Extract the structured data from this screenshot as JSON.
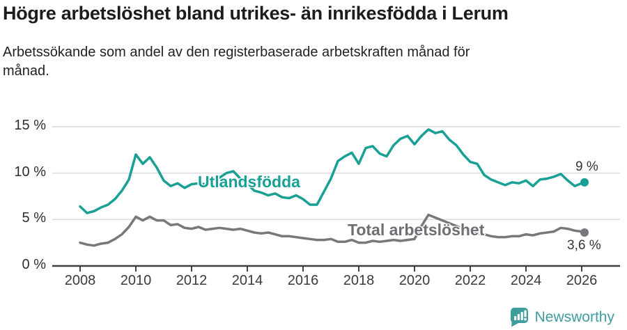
{
  "header": {
    "title": "Högre arbetslöshet bland utrikes- än inrikesfödda i Lerum",
    "subtitle": "Arbetssökande som andel av den registerbaserade arbetskraften månad för\nmånad."
  },
  "chart_data": {
    "type": "line",
    "title": "Högre arbetslöshet bland utrikes- än inrikesfödda i Lerum",
    "subtitle": "Arbetssökande som andel av den registerbaserade arbetskraften månad för månad.",
    "xlabel": "",
    "ylabel": "",
    "xlim": [
      2007.5,
      2027.3
    ],
    "ylim": [
      0,
      16
    ],
    "grid": "horizontal-light",
    "legend": "inline-labels-on-lines",
    "xticks": [
      2008,
      2010,
      2012,
      2014,
      2016,
      2018,
      2020,
      2022,
      2024,
      2026
    ],
    "yticks": [
      0,
      5,
      10,
      15
    ],
    "ytick_labels": [
      "0 %",
      "5 %",
      "10 %",
      "15 %"
    ],
    "x": [
      2008.0,
      2008.25,
      2008.5,
      2008.75,
      2009.0,
      2009.25,
      2009.5,
      2009.75,
      2010.0,
      2010.25,
      2010.5,
      2010.75,
      2011.0,
      2011.25,
      2011.5,
      2011.75,
      2012.0,
      2012.25,
      2012.5,
      2012.75,
      2013.0,
      2013.25,
      2013.5,
      2013.75,
      2014.0,
      2014.25,
      2014.5,
      2014.75,
      2015.0,
      2015.25,
      2015.5,
      2015.75,
      2016.0,
      2016.25,
      2016.5,
      2016.75,
      2017.0,
      2017.25,
      2017.5,
      2017.75,
      2018.0,
      2018.25,
      2018.5,
      2018.75,
      2019.0,
      2019.25,
      2019.5,
      2019.75,
      2020.0,
      2020.25,
      2020.5,
      2020.75,
      2021.0,
      2021.25,
      2021.5,
      2021.75,
      2022.0,
      2022.25,
      2022.5,
      2022.75,
      2023.0,
      2023.25,
      2023.5,
      2023.75,
      2024.0,
      2024.25,
      2024.5,
      2024.75,
      2025.0,
      2025.25,
      2025.5,
      2025.75,
      2026.0,
      2026.1
    ],
    "series": [
      {
        "name": "Utlandsfödda",
        "color": "#18a095",
        "end_label": "9 %",
        "values": [
          6.4,
          5.7,
          5.9,
          6.3,
          6.6,
          7.2,
          8.1,
          9.3,
          12.0,
          11.0,
          11.7,
          10.6,
          9.2,
          8.6,
          8.9,
          8.4,
          8.8,
          8.9,
          8.8,
          9.1,
          9.5,
          10.0,
          10.2,
          9.4,
          8.8,
          8.1,
          7.9,
          7.6,
          7.8,
          7.4,
          7.3,
          7.6,
          7.2,
          6.6,
          6.6,
          8.0,
          9.4,
          11.3,
          11.8,
          12.2,
          11.0,
          12.7,
          12.9,
          12.1,
          11.8,
          13.0,
          13.7,
          14.0,
          13.1,
          14.0,
          14.7,
          14.3,
          14.5,
          13.6,
          13.0,
          12.0,
          11.2,
          11.0,
          9.8,
          9.3,
          9.0,
          8.7,
          9.0,
          8.9,
          9.2,
          8.6,
          9.3,
          9.4,
          9.6,
          9.9,
          9.2,
          8.6,
          8.9,
          9.0
        ]
      },
      {
        "name": "Total arbetslöshet",
        "color": "#77777c",
        "end_label": "3,6 %",
        "values": [
          2.5,
          2.3,
          2.2,
          2.4,
          2.5,
          2.9,
          3.4,
          4.2,
          5.3,
          4.9,
          5.3,
          4.9,
          4.9,
          4.4,
          4.5,
          4.1,
          4.0,
          4.2,
          3.9,
          4.0,
          4.1,
          4.0,
          3.9,
          4.0,
          3.8,
          3.6,
          3.5,
          3.6,
          3.4,
          3.2,
          3.2,
          3.1,
          3.0,
          2.9,
          2.8,
          2.8,
          2.9,
          2.6,
          2.6,
          2.8,
          2.5,
          2.5,
          2.7,
          2.6,
          2.7,
          2.8,
          2.7,
          2.8,
          2.9,
          4.3,
          5.5,
          5.2,
          4.9,
          4.6,
          4.3,
          4.0,
          3.7,
          3.5,
          3.4,
          3.2,
          3.1,
          3.1,
          3.2,
          3.2,
          3.4,
          3.3,
          3.5,
          3.6,
          3.7,
          4.1,
          4.0,
          3.8,
          3.7,
          3.6
        ]
      }
    ]
  },
  "colors": {
    "accent_teal": "#18a095",
    "line_gray": "#77777c",
    "grid": "#dbdbdb",
    "axis": "#3f3f3f",
    "title_text": "#1c1c1c",
    "tick_text": "#3a3a3a",
    "brand_teal": "#3f9d9c"
  },
  "footer": {
    "brand": "Newsworthy",
    "logo_icon": "speech-bubble-bar-chart-exclamation"
  }
}
